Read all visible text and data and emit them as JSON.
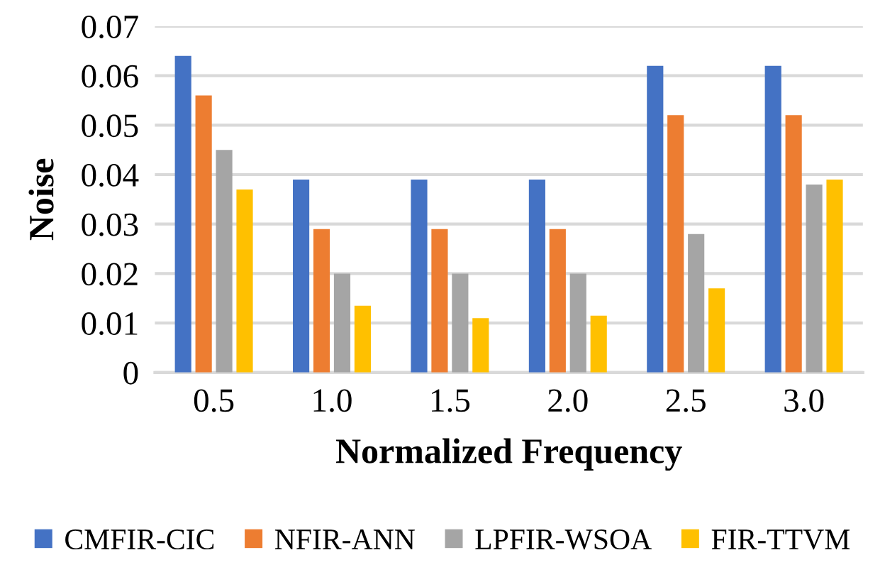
{
  "chart_data": {
    "type": "bar",
    "xlabel": "Normalized Frequency",
    "ylabel": "Noise",
    "categories": [
      "0.5",
      "1.0",
      "1.5",
      "2.0",
      "2.5",
      "3.0"
    ],
    "series": [
      {
        "name": "CMFIR-CIC",
        "color": "#4472c4",
        "values": [
          0.064,
          0.039,
          0.039,
          0.039,
          0.062,
          0.062
        ]
      },
      {
        "name": "NFIR-ANN",
        "color": "#ed7d31",
        "values": [
          0.056,
          0.029,
          0.029,
          0.029,
          0.052,
          0.052
        ]
      },
      {
        "name": "LPFIR-WSOA",
        "color": "#a5a5a5",
        "values": [
          0.045,
          0.02,
          0.02,
          0.02,
          0.028,
          0.038
        ]
      },
      {
        "name": "FIR-TTVM",
        "color": "#ffc000",
        "values": [
          0.037,
          0.0135,
          0.011,
          0.0115,
          0.017,
          0.039
        ]
      }
    ],
    "ylim": [
      0,
      0.07
    ],
    "yticks": [
      {
        "value": 0,
        "label": "0"
      },
      0.01,
      0.02,
      0.03,
      0.04,
      0.05,
      0.06,
      0.07
    ],
    "grid": "y",
    "legend": "bottom"
  }
}
